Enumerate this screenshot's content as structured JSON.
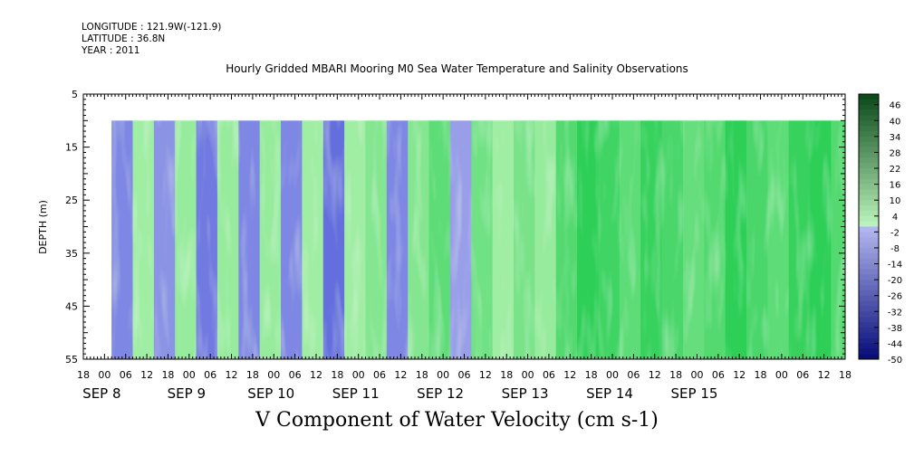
{
  "header": {
    "longitude": "LONGITUDE : 121.9W(-121.9)",
    "latitude": "LATITUDE : 36.8N",
    "year": "YEAR : 2011"
  },
  "chart_data": {
    "type": "heatmap",
    "title": "Hourly Gridded MBARI Mooring M0 Sea Water Temperature and Salinity Observations",
    "xlabel": "V Component of Water Velocity (cm s-1)",
    "ylabel": "DEPTH (m)",
    "ylim": [
      55,
      5
    ],
    "y_ticks": [
      5,
      15,
      25,
      35,
      45,
      55
    ],
    "data_depth_range": [
      10,
      55
    ],
    "x_hour_ticks": [
      "18",
      "00",
      "06",
      "12",
      "18",
      "00",
      "06",
      "12",
      "18",
      "00",
      "06",
      "12",
      "18",
      "00",
      "06",
      "12",
      "18",
      "00",
      "06",
      "12",
      "18",
      "00",
      "06",
      "12",
      "18",
      "00",
      "06",
      "12",
      "18",
      "00",
      "06",
      "12",
      "18",
      "00",
      "06",
      "12",
      "18"
    ],
    "date_labels": [
      "SEP 8",
      "SEP 9",
      "SEP 10",
      "SEP 11",
      "SEP 12",
      "SEP 13",
      "SEP 14",
      "SEP 15"
    ],
    "colorbar": {
      "min": -50,
      "max": 50,
      "step": 2,
      "labels": [
        "46",
        "40",
        "34",
        "28",
        "22",
        "16",
        "10",
        "4",
        "-2",
        "-8",
        "-14",
        "-20",
        "-26",
        "-32",
        "-38",
        "-44",
        "-50"
      ],
      "negative_color": "#3b46ce",
      "positive_color": "#0ca23c"
    },
    "v_profile": {
      "time_hours_from_sep8_00": [
        2,
        8,
        14,
        20,
        26,
        32,
        38,
        44,
        50,
        56,
        62,
        68,
        74,
        80,
        86,
        92,
        98,
        104,
        110,
        116,
        122,
        128,
        134,
        140,
        146,
        152,
        158,
        164,
        170,
        176,
        182,
        188,
        194,
        200,
        206,
        212
      ],
      "mean_v": [
        -4,
        1,
        -3,
        2,
        -5,
        2,
        -4,
        2,
        -4,
        1,
        -6,
        1,
        4,
        -4,
        4,
        8,
        -2,
        6,
        1,
        5,
        2,
        9,
        13,
        11,
        8,
        12,
        10,
        7,
        9,
        13,
        10,
        8,
        12,
        13,
        9,
        4
      ]
    }
  }
}
